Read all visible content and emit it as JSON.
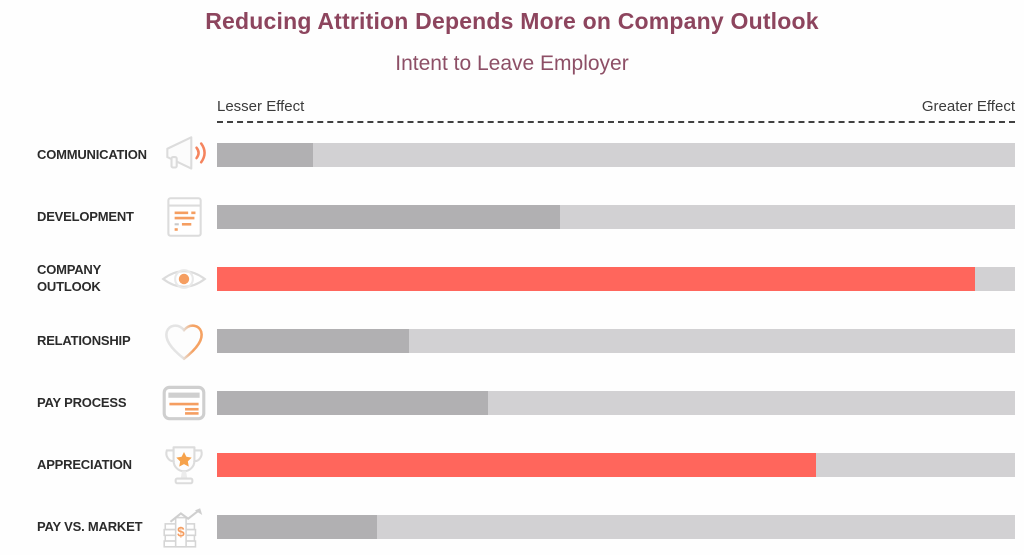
{
  "page": {
    "title": "Reducing Attrition Depends More on Company Outlook",
    "subtitle": "Intent to Leave Employer"
  },
  "axis": {
    "left_label": "Lesser Effect",
    "right_label": "Greater Effect"
  },
  "colors": {
    "title": "#8d455e",
    "subtitle": "#8d4f66",
    "highlight": "#ff665c",
    "bar_gray": "#b1b0b2",
    "track": "#d2d1d3",
    "icon_orange": "#f59e61",
    "icon_gray": "#dcdcdc",
    "axis_text": "#3b3b3b",
    "label_text": "#2b2b2b"
  },
  "chart_data": {
    "type": "bar",
    "orientation": "horizontal",
    "title": "Reducing Attrition Depends More on Company Outlook",
    "subtitle": "Intent to Leave Employer",
    "xlabel": "Effect on intent to leave (Lesser Effect → Greater Effect, unlabeled relative scale)",
    "ylabel": "",
    "xlim": [
      0,
      100
    ],
    "grid": false,
    "legend": "none",
    "categories": [
      "COMMUNICATION",
      "DEVELOPMENT",
      "COMPANY OUTLOOK",
      "RELATIONSHIP",
      "PAY PROCESS",
      "APPRECIATION",
      "PAY VS. MARKET"
    ],
    "values": [
      12,
      43,
      95,
      24,
      34,
      75,
      20
    ],
    "highlighted_categories": [
      "COMPANY OUTLOOK",
      "APPRECIATION"
    ],
    "rows": [
      {
        "label": "COMMUNICATION",
        "icon": "megaphone-icon",
        "value": 12,
        "highlight": false
      },
      {
        "label": "DEVELOPMENT",
        "icon": "document-icon",
        "value": 43,
        "highlight": false
      },
      {
        "label": "COMPANY OUTLOOK",
        "icon": "eye-icon",
        "value": 95,
        "highlight": true
      },
      {
        "label": "RELATIONSHIP",
        "icon": "heart-icon",
        "value": 24,
        "highlight": false
      },
      {
        "label": "PAY PROCESS",
        "icon": "credit-card-icon",
        "value": 34,
        "highlight": false
      },
      {
        "label": "APPRECIATION",
        "icon": "trophy-icon",
        "value": 75,
        "highlight": true
      },
      {
        "label": "PAY VS. MARKET",
        "icon": "money-growth-icon",
        "value": 20,
        "highlight": false
      }
    ]
  }
}
